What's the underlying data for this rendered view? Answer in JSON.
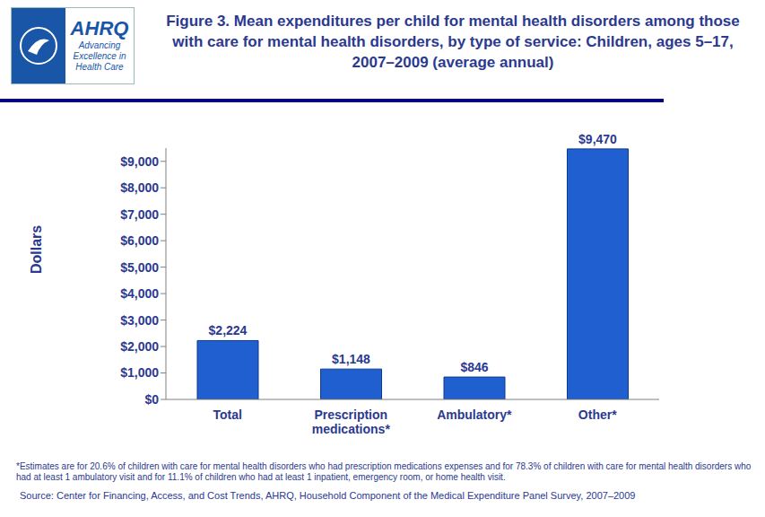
{
  "chart_data": {
    "type": "bar",
    "title": "Figure 3. Mean expenditures per child for mental health disorders among those with care for mental health disorders, by type of service: Children, ages 5–17, 2007–2009 (average annual)",
    "logo_name": "AHRQ",
    "logo_tagline": "Advancing Excellence in Health Care",
    "y_label": "Dollars",
    "categories": [
      "Total",
      "Prescription medications*",
      "Ambulatory*",
      "Other*"
    ],
    "values": [
      2224,
      1148,
      846,
      9470
    ],
    "value_labels": [
      "$2,224",
      "$1,148",
      "$846",
      "$9,470"
    ],
    "data_labels": true,
    "color": "#1f5fcf",
    "ylim": [
      0,
      9500
    ],
    "yticks": [
      {
        "value": 0,
        "label": "$0"
      },
      {
        "value": 1000,
        "label": "$1,000"
      },
      {
        "value": 2000,
        "label": "$2,000"
      },
      {
        "value": 3000,
        "label": "$3,000"
      },
      {
        "value": 4000,
        "label": "$4,000"
      },
      {
        "value": 5000,
        "label": "$5,000"
      },
      {
        "value": 6000,
        "label": "$6,000"
      },
      {
        "value": 7000,
        "label": "$7,000"
      },
      {
        "value": 8000,
        "label": "$8,000"
      },
      {
        "value": 9000,
        "label": "$9,000"
      }
    ],
    "grid": false,
    "footnote": "*Estimates are for 20.6% of children with care for mental health disorders who had prescription medications expenses and for 78.3% of children with care for mental health disorders who had at least 1 ambulatory visit and for 11.1% of children who had at least 1 inpatient, emergency room, or home health visit.",
    "source": "Source: Center for Financing, Access, and Cost Trends, AHRQ, Household Component of the Medical Expenditure Panel Survey, 2007–2009"
  }
}
